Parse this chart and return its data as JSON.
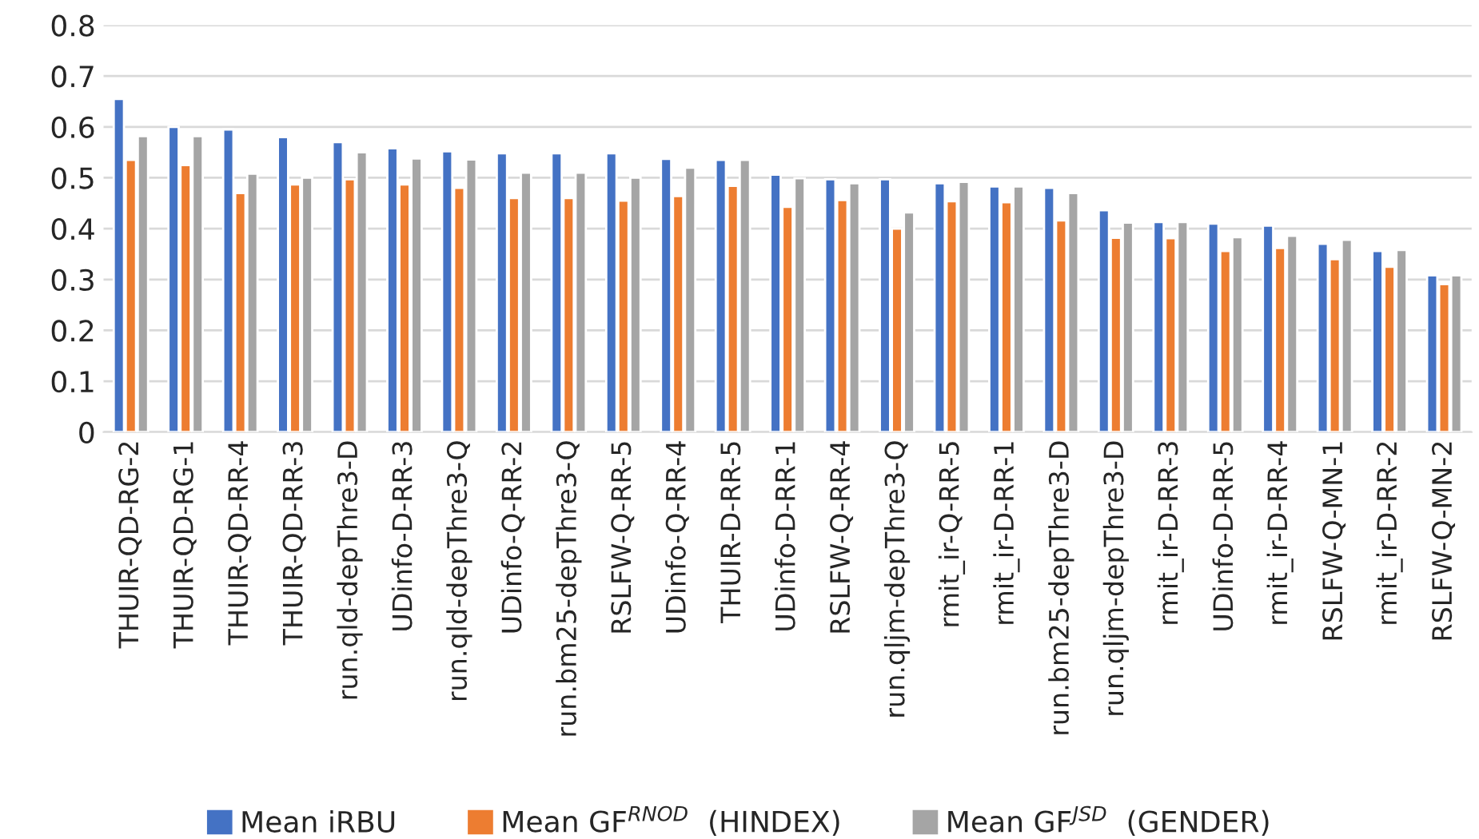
{
  "chart_data": {
    "type": "bar",
    "categories": [
      "THUIR-QD-RG-2",
      "THUIR-QD-RG-1",
      "THUIR-QD-RR-4",
      "THUIR-QD-RR-3",
      "run.qld-depThre3-D",
      "UDinfo-D-RR-3",
      "run.qld-depThre3-Q",
      "UDinfo-Q-RR-2",
      "run.bm25-depThre3-Q",
      "RSLFW-Q-RR-5",
      "UDinfo-Q-RR-4",
      "THUIR-D-RR-5",
      "UDinfo-D-RR-1",
      "RSLFW-Q-RR-4",
      "run.qljm-depThre3-Q",
      "rmit_ir-Q-RR-5",
      "rmit_ir-D-RR-1",
      "run.bm25-depThre3-D",
      "run.qljm-depThre3-D",
      "rmit_ir-D-RR-3",
      "UDinfo-D-RR-5",
      "rmit_ir-D-RR-4",
      "RSLFW-Q-MN-1",
      "rmit_ir-D-RR-2",
      "RSLFW-Q-MN-2"
    ],
    "series": [
      {
        "name": "Mean iRBU",
        "color": "#4472c4",
        "values": [
          0.655,
          0.6,
          0.595,
          0.58,
          0.57,
          0.558,
          0.552,
          0.548,
          0.548,
          0.548,
          0.537,
          0.535,
          0.506,
          0.497,
          0.497,
          0.489,
          0.483,
          0.48,
          0.436,
          0.413,
          0.41,
          0.406,
          0.37,
          0.356,
          0.308
        ]
      },
      {
        "name": "Mean GF$^{RNOD}$  (HINDEX)",
        "color": "#ed7d31",
        "values": [
          0.535,
          0.525,
          0.47,
          0.487,
          0.497,
          0.487,
          0.48,
          0.46,
          0.46,
          0.455,
          0.464,
          0.484,
          0.443,
          0.456,
          0.4,
          0.454,
          0.452,
          0.416,
          0.382,
          0.381,
          0.356,
          0.362,
          0.34,
          0.325,
          0.291
        ]
      },
      {
        "name": "Mean GF$^{JSD}$  (GENDER)",
        "color": "#a5a5a5",
        "values": [
          0.582,
          0.582,
          0.508,
          0.5,
          0.55,
          0.538,
          0.536,
          0.51,
          0.51,
          0.5,
          0.52,
          0.535,
          0.499,
          0.489,
          0.432,
          0.492,
          0.483,
          0.47,
          0.412,
          0.413,
          0.383,
          0.386,
          0.378,
          0.358,
          0.308
        ]
      }
    ],
    "ylim": [
      0,
      0.8
    ],
    "yticks": [
      0,
      0.1,
      0.2,
      0.3,
      0.4,
      0.5,
      0.6,
      0.7,
      0.8
    ],
    "grid": "y",
    "legend": "bottom"
  }
}
